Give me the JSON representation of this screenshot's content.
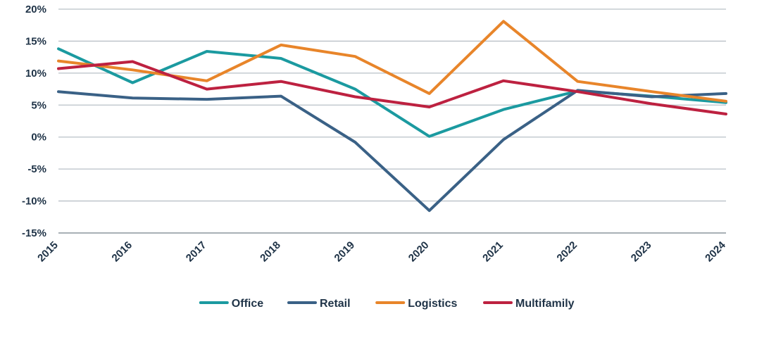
{
  "chart_data": {
    "type": "line",
    "x": [
      "2015",
      "2016",
      "2017",
      "2018",
      "2019",
      "2020",
      "2021",
      "2022",
      "2023",
      "2024"
    ],
    "ylim": [
      -15,
      20
    ],
    "yticks": [
      20,
      15,
      10,
      5,
      0,
      -5,
      -10,
      -15
    ],
    "ytick_labels": [
      "20%",
      "15%",
      "10%",
      "5%",
      "0%",
      "-5%",
      "-10%",
      "-15%"
    ],
    "grid": true,
    "legend_position": "bottom",
    "series": [
      {
        "name": "Office",
        "color": "#1b9aa0",
        "values": [
          13.8,
          8.5,
          13.4,
          12.3,
          7.5,
          0.1,
          4.3,
          7.2,
          6.4,
          5.4
        ]
      },
      {
        "name": "Retail",
        "color": "#3a6186",
        "values": [
          7.1,
          6.1,
          5.9,
          6.4,
          -0.8,
          -11.5,
          -0.4,
          7.3,
          6.3,
          6.8
        ]
      },
      {
        "name": "Logistics",
        "color": "#e8852a",
        "values": [
          11.9,
          10.5,
          8.8,
          14.4,
          12.6,
          6.8,
          18.1,
          8.7,
          7.1,
          5.6
        ]
      },
      {
        "name": "Multifamily",
        "color": "#bd2140",
        "values": [
          10.7,
          11.8,
          7.5,
          8.7,
          6.3,
          4.7,
          8.8,
          7.1,
          5.2,
          3.6
        ]
      }
    ]
  }
}
